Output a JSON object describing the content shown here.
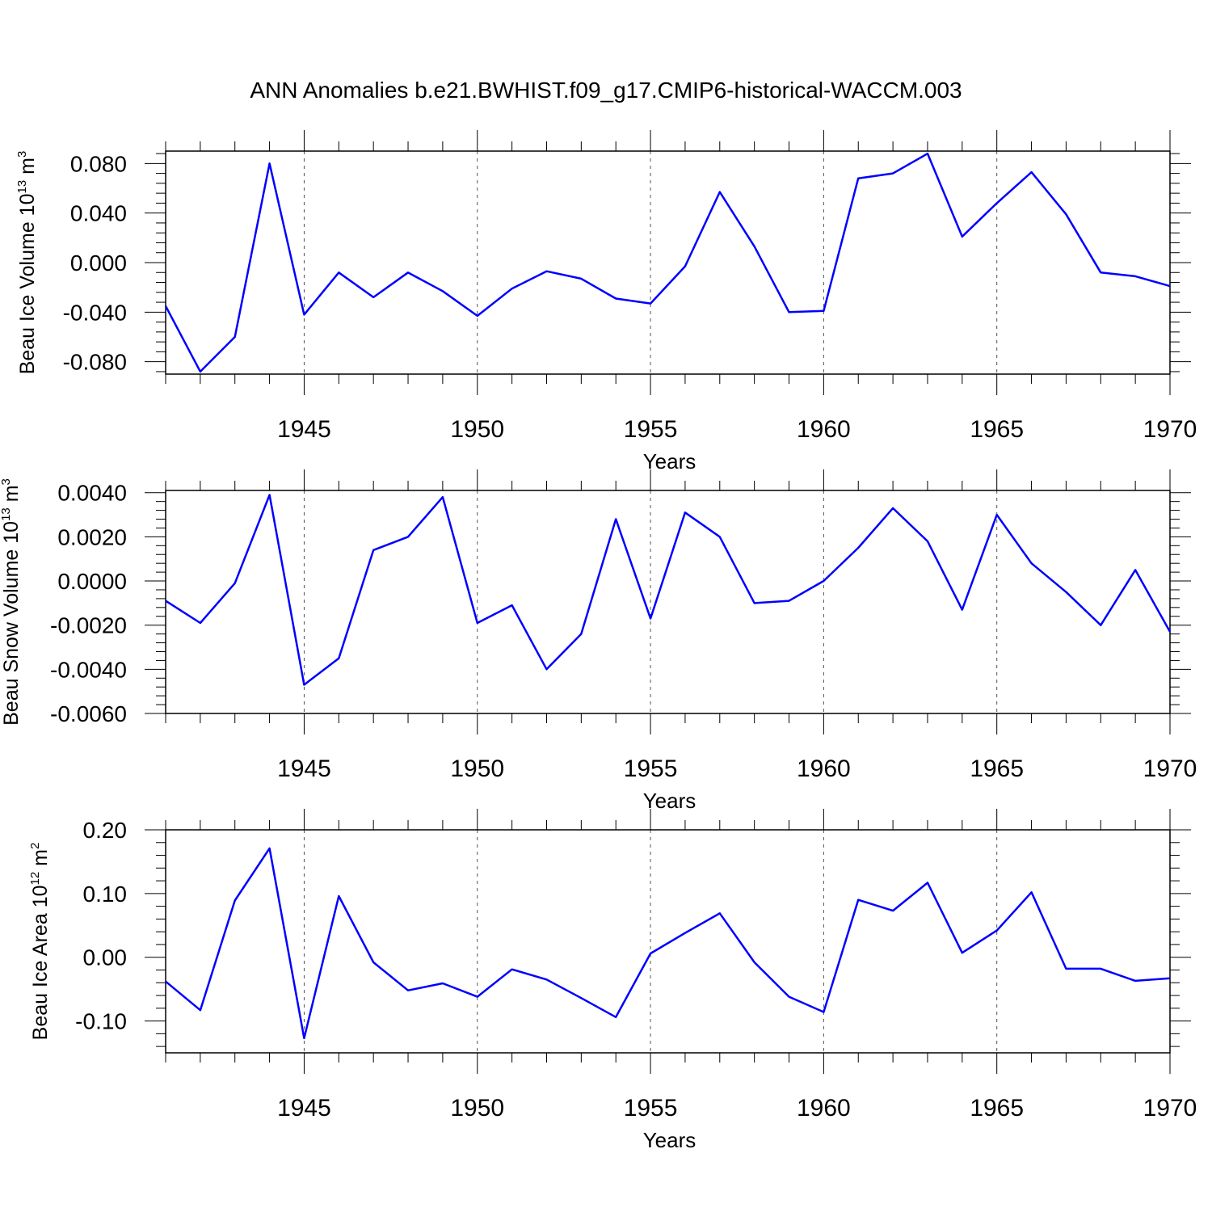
{
  "figure": {
    "title": "ANN Anomalies b.e21.BWHIST.f09_g17.CMIP6-historical-WACCM.003",
    "line_color": "#0000ff"
  },
  "chart_data": [
    {
      "type": "line",
      "title": "ANN Anomalies b.e21.BWHIST.f09_g17.CMIP6-historical-WACCM.003",
      "xlabel": "Years",
      "ylabel_main": "Beau Ice Volume 10",
      "ylabel_exp": "13",
      "ylabel_unit": " m",
      "ylabel_unit_exp": "3",
      "xlim": [
        1941,
        1970
      ],
      "ylim": [
        -0.09,
        0.09
      ],
      "yticks": [
        -0.08,
        -0.04,
        0.0,
        0.04,
        0.08
      ],
      "ytick_labels": [
        "-0.080",
        "-0.040",
        "0.000",
        "0.040",
        "0.080"
      ],
      "xticks": [
        1945,
        1950,
        1955,
        1960,
        1965,
        1970
      ],
      "xtick_labels": [
        "1945",
        "1950",
        "1955",
        "1960",
        "1965",
        "1970"
      ],
      "x": [
        1941,
        1942,
        1943,
        1944,
        1945,
        1946,
        1947,
        1948,
        1949,
        1950,
        1951,
        1952,
        1953,
        1954,
        1955,
        1956,
        1957,
        1958,
        1959,
        1960,
        1961,
        1962,
        1963,
        1964,
        1965,
        1966,
        1967,
        1968,
        1969,
        1970
      ],
      "values": [
        -0.035,
        -0.088,
        -0.06,
        0.08,
        -0.042,
        -0.008,
        -0.028,
        -0.008,
        -0.023,
        -0.043,
        -0.021,
        -0.007,
        -0.013,
        -0.029,
        -0.033,
        -0.003,
        0.057,
        0.013,
        -0.04,
        -0.039,
        0.068,
        0.072,
        0.088,
        0.021,
        0.048,
        0.073,
        0.039,
        -0.008,
        -0.011,
        -0.019
      ]
    },
    {
      "type": "line",
      "xlabel": "Years",
      "ylabel_main": "Beau Snow Volume 10",
      "ylabel_exp": "13",
      "ylabel_unit": " m",
      "ylabel_unit_exp": "3",
      "xlim": [
        1941,
        1970
      ],
      "ylim": [
        -0.006,
        0.0041
      ],
      "yticks": [
        -0.006,
        -0.004,
        -0.002,
        0.0,
        0.002,
        0.004
      ],
      "ytick_labels": [
        "-0.0060",
        "-0.0040",
        "-0.0020",
        "0.0000",
        "0.0020",
        "0.0040"
      ],
      "xticks": [
        1945,
        1950,
        1955,
        1960,
        1965,
        1970
      ],
      "xtick_labels": [
        "1945",
        "1950",
        "1955",
        "1960",
        "1965",
        "1970"
      ],
      "x": [
        1941,
        1942,
        1943,
        1944,
        1945,
        1946,
        1947,
        1948,
        1949,
        1950,
        1951,
        1952,
        1953,
        1954,
        1955,
        1956,
        1957,
        1958,
        1959,
        1960,
        1961,
        1962,
        1963,
        1964,
        1965,
        1966,
        1967,
        1968,
        1969,
        1970
      ],
      "values": [
        -0.0009,
        -0.0019,
        -0.0001,
        0.0039,
        -0.0047,
        -0.0035,
        0.0014,
        0.002,
        0.0038,
        -0.0019,
        -0.0011,
        -0.004,
        -0.0024,
        0.0028,
        -0.0017,
        0.0031,
        0.002,
        -0.001,
        -0.0009,
        0.0,
        0.0015,
        0.0033,
        0.0018,
        -0.0013,
        0.003,
        0.0008,
        -0.0005,
        -0.002,
        0.0005,
        -0.0023
      ]
    },
    {
      "type": "line",
      "xlabel": "Years",
      "ylabel_main": "Beau Ice Area 10",
      "ylabel_exp": "12",
      "ylabel_unit": " m",
      "ylabel_unit_exp": "2",
      "xlim": [
        1941,
        1970
      ],
      "ylim": [
        -0.15,
        0.2
      ],
      "yticks": [
        -0.1,
        0.0,
        0.1,
        0.2
      ],
      "ytick_labels": [
        "-0.10",
        "0.00",
        "0.10",
        "0.20"
      ],
      "xticks": [
        1945,
        1950,
        1955,
        1960,
        1965,
        1970
      ],
      "xtick_labels": [
        "1945",
        "1950",
        "1955",
        "1960",
        "1965",
        "1970"
      ],
      "x": [
        1941,
        1942,
        1943,
        1944,
        1945,
        1946,
        1947,
        1948,
        1949,
        1950,
        1951,
        1952,
        1953,
        1954,
        1955,
        1956,
        1957,
        1958,
        1959,
        1960,
        1961,
        1962,
        1963,
        1964,
        1965,
        1966,
        1967,
        1968,
        1969,
        1970
      ],
      "values": [
        -0.038,
        -0.083,
        0.089,
        0.171,
        -0.127,
        0.096,
        -0.008,
        -0.052,
        -0.041,
        -0.062,
        -0.019,
        -0.035,
        -0.064,
        -0.094,
        0.006,
        0.038,
        0.069,
        -0.008,
        -0.062,
        -0.086,
        0.09,
        0.073,
        0.117,
        0.007,
        0.042,
        0.102,
        -0.018,
        -0.018,
        -0.037,
        -0.033
      ]
    }
  ]
}
